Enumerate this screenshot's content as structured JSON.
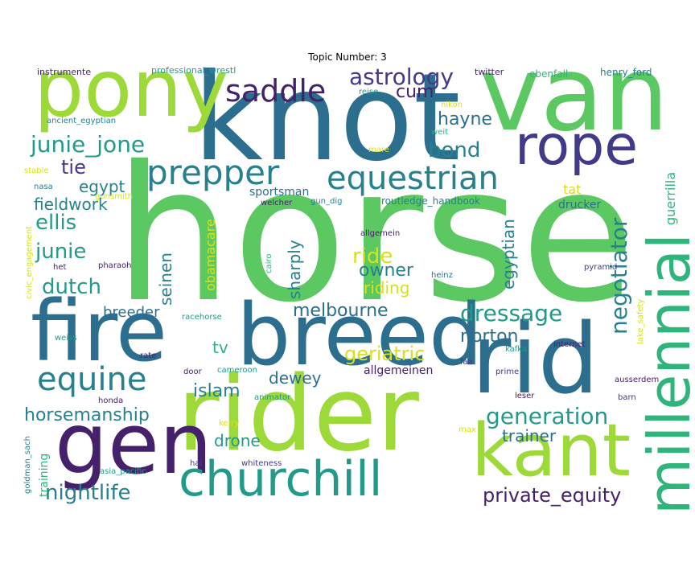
{
  "title": "Topic Number: 3",
  "palette": {
    "green": "#5bc862",
    "lime": "#9ed93a",
    "blue": "#2c6e8e",
    "indigo": "#403a88",
    "navy": "#46216b",
    "teal": "#229a89",
    "tealblue": "#27808e",
    "yellow": "#d8e219",
    "aqua": "#2fb47c"
  },
  "words": [
    {
      "text": "horse",
      "weight": 100
    },
    {
      "text": "knot",
      "weight": 58
    },
    {
      "text": "van",
      "weight": 55
    },
    {
      "text": "pony",
      "weight": 48
    },
    {
      "text": "rider",
      "weight": 50
    },
    {
      "text": "fire",
      "weight": 50
    },
    {
      "text": "breed",
      "weight": 50
    },
    {
      "text": "rid",
      "weight": 48
    },
    {
      "text": "gen",
      "weight": 46
    },
    {
      "text": "kant",
      "weight": 40
    },
    {
      "text": "millennial",
      "weight": 38
    },
    {
      "text": "churchill",
      "weight": 32
    },
    {
      "text": "rope",
      "weight": 32
    },
    {
      "text": "prepper",
      "weight": 24
    },
    {
      "text": "equestrian",
      "weight": 22
    },
    {
      "text": "equine",
      "weight": 22
    },
    {
      "text": "saddle",
      "weight": 20
    },
    {
      "text": "astrology",
      "weight": 16
    },
    {
      "text": "junie_jone",
      "weight": 16
    },
    {
      "text": "dressage",
      "weight": 16
    },
    {
      "text": "generation",
      "weight": 16
    },
    {
      "text": "negotiator",
      "weight": 16
    },
    {
      "text": "nightlife",
      "weight": 14
    },
    {
      "text": "private_equity",
      "weight": 14
    },
    {
      "text": "geriatric",
      "weight": 14
    },
    {
      "text": "ellis",
      "weight": 14
    },
    {
      "text": "junie",
      "weight": 14
    },
    {
      "text": "dutch",
      "weight": 14
    },
    {
      "text": "horsemanship",
      "weight": 12
    },
    {
      "text": "melbourne",
      "weight": 12
    },
    {
      "text": "bond",
      "weight": 14
    },
    {
      "text": "hayne",
      "weight": 12
    },
    {
      "text": "cum",
      "weight": 12
    },
    {
      "text": "tie",
      "weight": 12
    },
    {
      "text": "egypt",
      "weight": 11
    },
    {
      "text": "fieldwork",
      "weight": 11
    },
    {
      "text": "ride",
      "weight": 12
    },
    {
      "text": "owner",
      "weight": 12
    },
    {
      "text": "riding",
      "weight": 11
    },
    {
      "text": "sharply",
      "weight": 11
    },
    {
      "text": "seinen",
      "weight": 11
    },
    {
      "text": "egyptian",
      "weight": 11
    },
    {
      "text": "norton",
      "weight": 11
    },
    {
      "text": "islam",
      "weight": 11
    },
    {
      "text": "dewey",
      "weight": 11
    },
    {
      "text": "trainer",
      "weight": 11
    },
    {
      "text": "drone",
      "weight": 11
    },
    {
      "text": "tv",
      "weight": 11
    },
    {
      "text": "breeder",
      "weight": 10
    },
    {
      "text": "sportsman",
      "weight": 9
    },
    {
      "text": "tat",
      "weight": 9
    },
    {
      "text": "drucker",
      "weight": 9
    },
    {
      "text": "obamacare",
      "weight": 9
    },
    {
      "text": "guerrilla",
      "weight": 9
    },
    {
      "text": "allgemeinen",
      "weight": 9
    },
    {
      "text": "training",
      "weight": 8
    },
    {
      "text": "professional_wrestl",
      "weight": 7
    },
    {
      "text": "instrumente",
      "weight": 7
    },
    {
      "text": "twitter",
      "weight": 7
    },
    {
      "text": "ebenfall",
      "weight": 7
    },
    {
      "text": "henry_ford",
      "weight": 7
    },
    {
      "text": "reise",
      "weight": 6
    },
    {
      "text": "nikon",
      "weight": 6
    },
    {
      "text": "ancient_egyptian",
      "weight": 6
    },
    {
      "text": "weit",
      "weight": 6
    },
    {
      "text": "mare",
      "weight": 6
    },
    {
      "text": "stable",
      "weight": 6
    },
    {
      "text": "nasa",
      "weight": 6
    },
    {
      "text": "gunsmith",
      "weight": 6
    },
    {
      "text": "welcher",
      "weight": 6
    },
    {
      "text": "gun_dig",
      "weight": 6
    },
    {
      "text": "routledge_handbook",
      "weight": 6
    },
    {
      "text": "allgemein",
      "weight": 6
    },
    {
      "text": "het",
      "weight": 6
    },
    {
      "text": "pharaoh",
      "weight": 6
    },
    {
      "text": "cairo",
      "weight": 6
    },
    {
      "text": "heinz",
      "weight": 6
    },
    {
      "text": "pyramid",
      "weight": 6
    },
    {
      "text": "civic_engagement",
      "weight": 6
    },
    {
      "text": "racehorse",
      "weight": 6
    },
    {
      "text": "weiss",
      "weight": 6
    },
    {
      "text": "rate",
      "weight": 6
    },
    {
      "text": "door",
      "weight": 6
    },
    {
      "text": "cameroon",
      "weight": 6
    },
    {
      "text": "kafka",
      "weight": 6
    },
    {
      "text": "faa",
      "weight": 6
    },
    {
      "text": "internet",
      "weight": 6
    },
    {
      "text": "lake_safety",
      "weight": 6
    },
    {
      "text": "prime",
      "weight": 6
    },
    {
      "text": "ausserdem",
      "weight": 6
    },
    {
      "text": "honda",
      "weight": 6
    },
    {
      "text": "animator",
      "weight": 6
    },
    {
      "text": "leser",
      "weight": 6
    },
    {
      "text": "barn",
      "weight": 6
    },
    {
      "text": "kerry",
      "weight": 6
    },
    {
      "text": "max",
      "weight": 6
    },
    {
      "text": "goldman_sach",
      "weight": 6
    },
    {
      "text": "asia_pacific",
      "weight": 6
    },
    {
      "text": "hal",
      "weight": 6
    },
    {
      "text": "whiteness",
      "weight": 6
    }
  ]
}
